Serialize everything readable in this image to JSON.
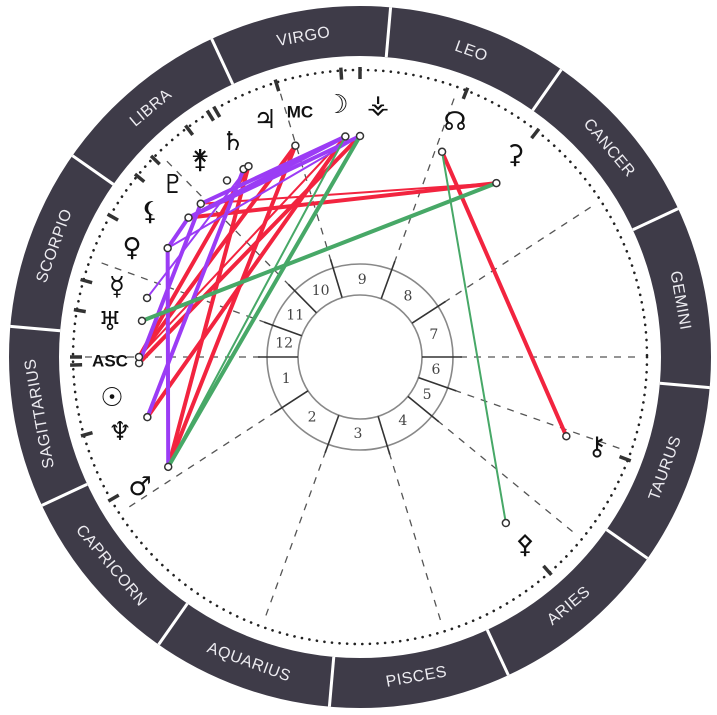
{
  "chart": {
    "zodiac_signs": [
      "GEMINI",
      "CANCER",
      "LEO",
      "VIRGO",
      "LIBRA",
      "SCORPIO",
      "SAGITTARIUS",
      "CAPRICORN",
      "AQUARIUS",
      "PISCES",
      "ARIES",
      "TAURUS"
    ],
    "houses": [
      "1",
      "2",
      "3",
      "4",
      "5",
      "6",
      "7",
      "8",
      "9",
      "10",
      "11",
      "12"
    ],
    "points": [
      {
        "id": "mars",
        "symbol": "♂"
      },
      {
        "id": "neptune",
        "symbol": "♆"
      },
      {
        "id": "sun",
        "symbol": "☉"
      },
      {
        "id": "asc",
        "symbol": "ASC"
      },
      {
        "id": "uranus",
        "symbol": "♅"
      },
      {
        "id": "mercury",
        "symbol": "☿"
      },
      {
        "id": "venus",
        "symbol": "♀"
      },
      {
        "id": "lilith",
        "symbol": "⚸"
      },
      {
        "id": "pluto",
        "symbol": "♇"
      },
      {
        "id": "juno",
        "symbol": "⚵"
      },
      {
        "id": "saturn",
        "symbol": "♄"
      },
      {
        "id": "jupiter",
        "symbol": "♃"
      },
      {
        "id": "mc",
        "symbol": "MC"
      },
      {
        "id": "moon",
        "symbol": "☽"
      },
      {
        "id": "vesta",
        "symbol": "⚶"
      },
      {
        "id": "north-node",
        "symbol": "☊"
      },
      {
        "id": "ceres",
        "symbol": "⚳"
      },
      {
        "id": "chiron",
        "symbol": "⚷"
      },
      {
        "id": "pallas",
        "symbol": "⚴"
      }
    ],
    "aspects": [
      {
        "from": "north-node",
        "to": "chiron",
        "color": "red",
        "weight": "thick"
      },
      {
        "from": "lilith",
        "to": "ceres",
        "color": "red",
        "weight": "thick"
      },
      {
        "from": "pluto",
        "to": "ceres",
        "color": "red",
        "weight": "thin"
      },
      {
        "from": "mars",
        "to": "jupiter",
        "color": "red",
        "weight": "thick"
      },
      {
        "from": "mars",
        "to": "mc",
        "color": "red",
        "weight": "thick"
      },
      {
        "from": "asc",
        "to": "jupiter",
        "color": "red",
        "weight": "thick"
      },
      {
        "from": "asc",
        "to": "mc",
        "color": "red",
        "weight": "thick"
      },
      {
        "from": "sun",
        "to": "vesta",
        "color": "red",
        "weight": "thick"
      },
      {
        "from": "neptune",
        "to": "moon",
        "color": "red",
        "weight": "thick"
      },
      {
        "from": "asc",
        "to": "moon",
        "color": "red",
        "weight": "thin"
      },
      {
        "from": "mars",
        "to": "venus",
        "color": "purple",
        "weight": "thick"
      },
      {
        "from": "neptune",
        "to": "saturn",
        "color": "purple",
        "weight": "thick"
      },
      {
        "from": "sun",
        "to": "pluto",
        "color": "purple",
        "weight": "thick"
      },
      {
        "from": "mercury",
        "to": "jupiter",
        "color": "purple",
        "weight": "thin"
      },
      {
        "from": "venus",
        "to": "lilith",
        "color": "purple",
        "weight": "thick"
      },
      {
        "from": "lilith",
        "to": "moon",
        "color": "purple",
        "weight": "thick"
      },
      {
        "from": "pluto",
        "to": "moon",
        "color": "purple",
        "weight": "thick"
      },
      {
        "from": "lilith",
        "to": "vesta",
        "color": "purple",
        "weight": "thick"
      },
      {
        "from": "venus",
        "to": "vesta",
        "color": "purple",
        "weight": "thin"
      },
      {
        "from": "mars",
        "to": "vesta",
        "color": "green",
        "weight": "thick"
      },
      {
        "from": "mars",
        "to": "moon",
        "color": "green",
        "weight": "thin"
      },
      {
        "from": "uranus",
        "to": "ceres",
        "color": "green",
        "weight": "thick"
      },
      {
        "from": "north-node",
        "to": "pallas",
        "color": "green",
        "weight": "thin"
      }
    ],
    "colors": {
      "ring": "#3e3b48",
      "red": "#f2243f",
      "purple": "#9b3cf5",
      "green": "#47a867"
    }
  }
}
